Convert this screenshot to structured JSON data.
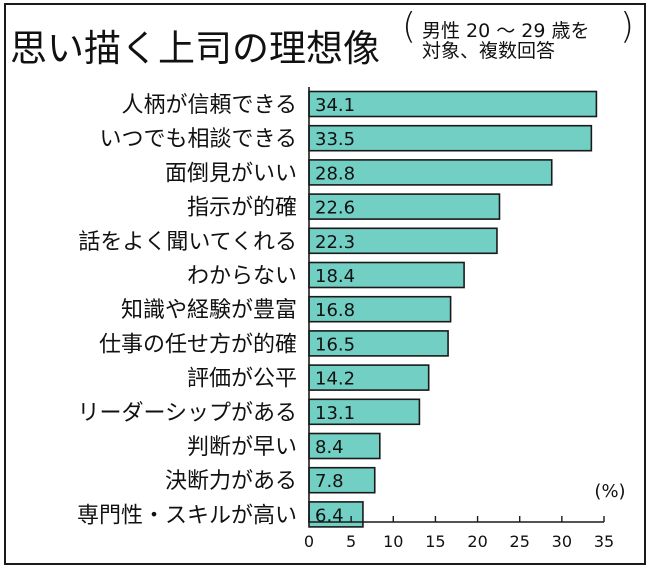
{
  "chart_data": {
    "type": "bar",
    "orientation": "horizontal",
    "title": "思い描く上司の理想像",
    "subtitle_line1": "男性 20 ～ 29 歳を",
    "subtitle_line2": "対象、複数回答",
    "unit": "(%)",
    "xlim": [
      0,
      35
    ],
    "xticks": [
      "0",
      "5",
      "10",
      "15",
      "20",
      "25",
      "30",
      "35"
    ],
    "categories": [
      "人柄が信頼できる",
      "いつでも相談できる",
      "面倒見がいい",
      "指示が的確",
      "話をよく聞いてくれる",
      "わからない",
      "知識や経験が豊富",
      "仕事の任せ方が的確",
      "評価が公平",
      "リーダーシップがある",
      "判断が早い",
      "決断力がある",
      "専門性・スキルが高い"
    ],
    "values": [
      34.1,
      33.5,
      28.8,
      22.6,
      22.3,
      18.4,
      16.8,
      16.5,
      14.2,
      13.1,
      8.4,
      7.8,
      6.4
    ],
    "value_labels": [
      "34.1",
      "33.5",
      "28.8",
      "22.6",
      "22.3",
      "18.4",
      "16.8",
      "16.5",
      "14.2",
      "13.1",
      "8.4",
      "7.8",
      "6.4"
    ],
    "bar_color": "#72cfc4",
    "bar_edge_color": "#1a1a1a",
    "grid": false
  }
}
